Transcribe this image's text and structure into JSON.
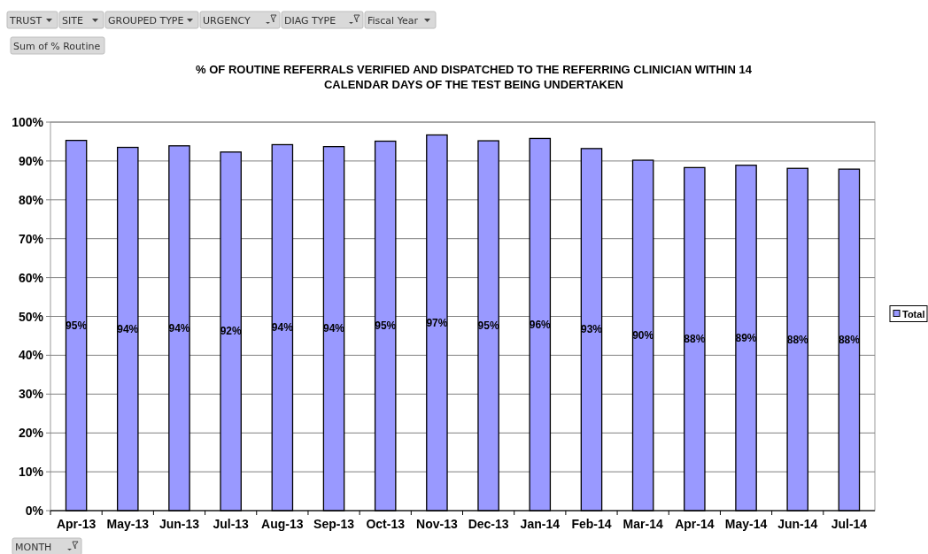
{
  "chart_data": {
    "type": "bar",
    "title": "% OF ROUTINE REFERRALS VERIFIED AND DISPATCHED TO THE REFERRING CLINICIAN WITHIN 14 CALENDAR DAYS OF THE TEST BEING UNDERTAKEN",
    "categories": [
      "Apr-13",
      "May-13",
      "Jun-13",
      "Jul-13",
      "Aug-13",
      "Sep-13",
      "Oct-13",
      "Nov-13",
      "Dec-13",
      "Jan-14",
      "Feb-14",
      "Mar-14",
      "Apr-14",
      "May-14",
      "Jun-14",
      "Jul-14"
    ],
    "series": [
      {
        "name": "Total",
        "color": "#9999ff",
        "values": [
          95.3,
          93.5,
          93.9,
          92.3,
          94.2,
          93.7,
          95.1,
          96.7,
          95.2,
          95.8,
          93.2,
          90.2,
          88.3,
          88.9,
          88.1,
          87.9
        ],
        "value_labels": [
          "95%",
          "94%",
          "94%",
          "92%",
          "94%",
          "94%",
          "95%",
          "97%",
          "95%",
          "96%",
          "93%",
          "90%",
          "88%",
          "89%",
          "88%",
          "88%"
        ]
      }
    ],
    "ylim": [
      0,
      100
    ],
    "yticks": [
      {
        "value": 0,
        "label": "0%"
      },
      {
        "value": 10,
        "label": "10%"
      },
      {
        "value": 20,
        "label": "20%"
      },
      {
        "value": 30,
        "label": "30%"
      },
      {
        "value": 40,
        "label": "40%"
      },
      {
        "value": 50,
        "label": "50%"
      },
      {
        "value": 60,
        "label": "60%"
      },
      {
        "value": 70,
        "label": "70%"
      },
      {
        "value": 80,
        "label": "80%"
      },
      {
        "value": 90,
        "label": "90%"
      },
      {
        "value": 100,
        "label": "100%"
      }
    ],
    "grid": "y",
    "legend": "right",
    "annotations": [
      "TRUST",
      "SITE",
      "GROUPED TYPE",
      "URGENCY",
      "DIAG TYPE",
      "Fiscal Year",
      "Sum of % Routine",
      "MONTH"
    ]
  }
}
